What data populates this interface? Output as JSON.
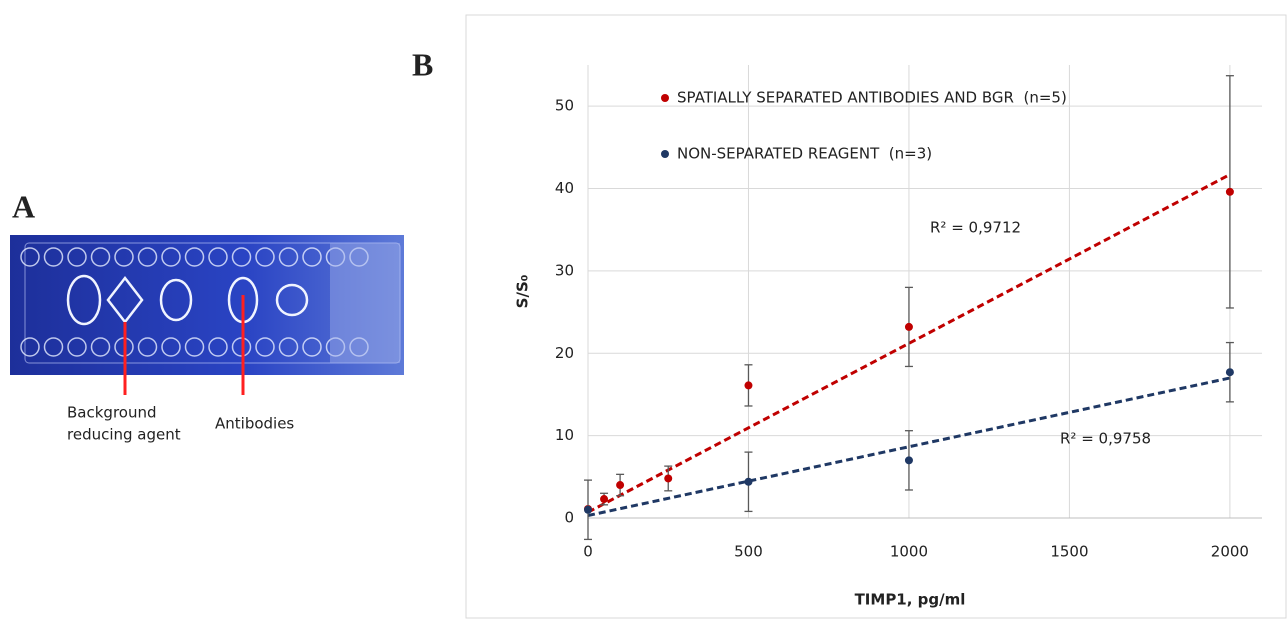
{
  "panel_a": {
    "label": "A",
    "annotations": [
      [
        "Background",
        "reducing agent"
      ],
      "Antibodies"
    ]
  },
  "chart_data": {
    "type": "scatter",
    "panel_label": "B",
    "x_label": "TIMP1, pg/ml",
    "y_label": "S/S₀",
    "xlim": [
      0,
      2100
    ],
    "ylim": [
      0,
      55
    ],
    "xticks": [
      0,
      500,
      1000,
      1500,
      2000
    ],
    "yticks": [
      0,
      10,
      20,
      30,
      40,
      50
    ],
    "grid": true,
    "legend": "top-left",
    "series": [
      {
        "name": "SPATIALLY SEPARATED ANTIBODIES AND BGR  (n=5)",
        "color": "#c00000",
        "x": [
          0,
          50,
          100,
          250,
          500,
          1000,
          2000
        ],
        "values": [
          1.1,
          2.3,
          4.0,
          4.8,
          16.1,
          23.2,
          39.6
        ],
        "errors": [
          0,
          0.7,
          1.3,
          1.5,
          2.5,
          4.8,
          14.1
        ],
        "trendline": {
          "x": [
            0,
            2000
          ],
          "values": [
            0.7,
            41.7
          ],
          "annotation": "R² = 0,9712"
        }
      },
      {
        "name": "NON-SEPARATED REAGENT  (n=3)",
        "color": "#1f3864",
        "x": [
          0,
          500,
          1000,
          2000
        ],
        "values": [
          1.0,
          4.4,
          7.0,
          17.7
        ],
        "errors": [
          3.6,
          3.6,
          3.6,
          3.6
        ],
        "trendline": {
          "x": [
            0,
            2000
          ],
          "values": [
            0.3,
            17.0
          ],
          "annotation": "R² = 0,9758"
        }
      }
    ]
  }
}
